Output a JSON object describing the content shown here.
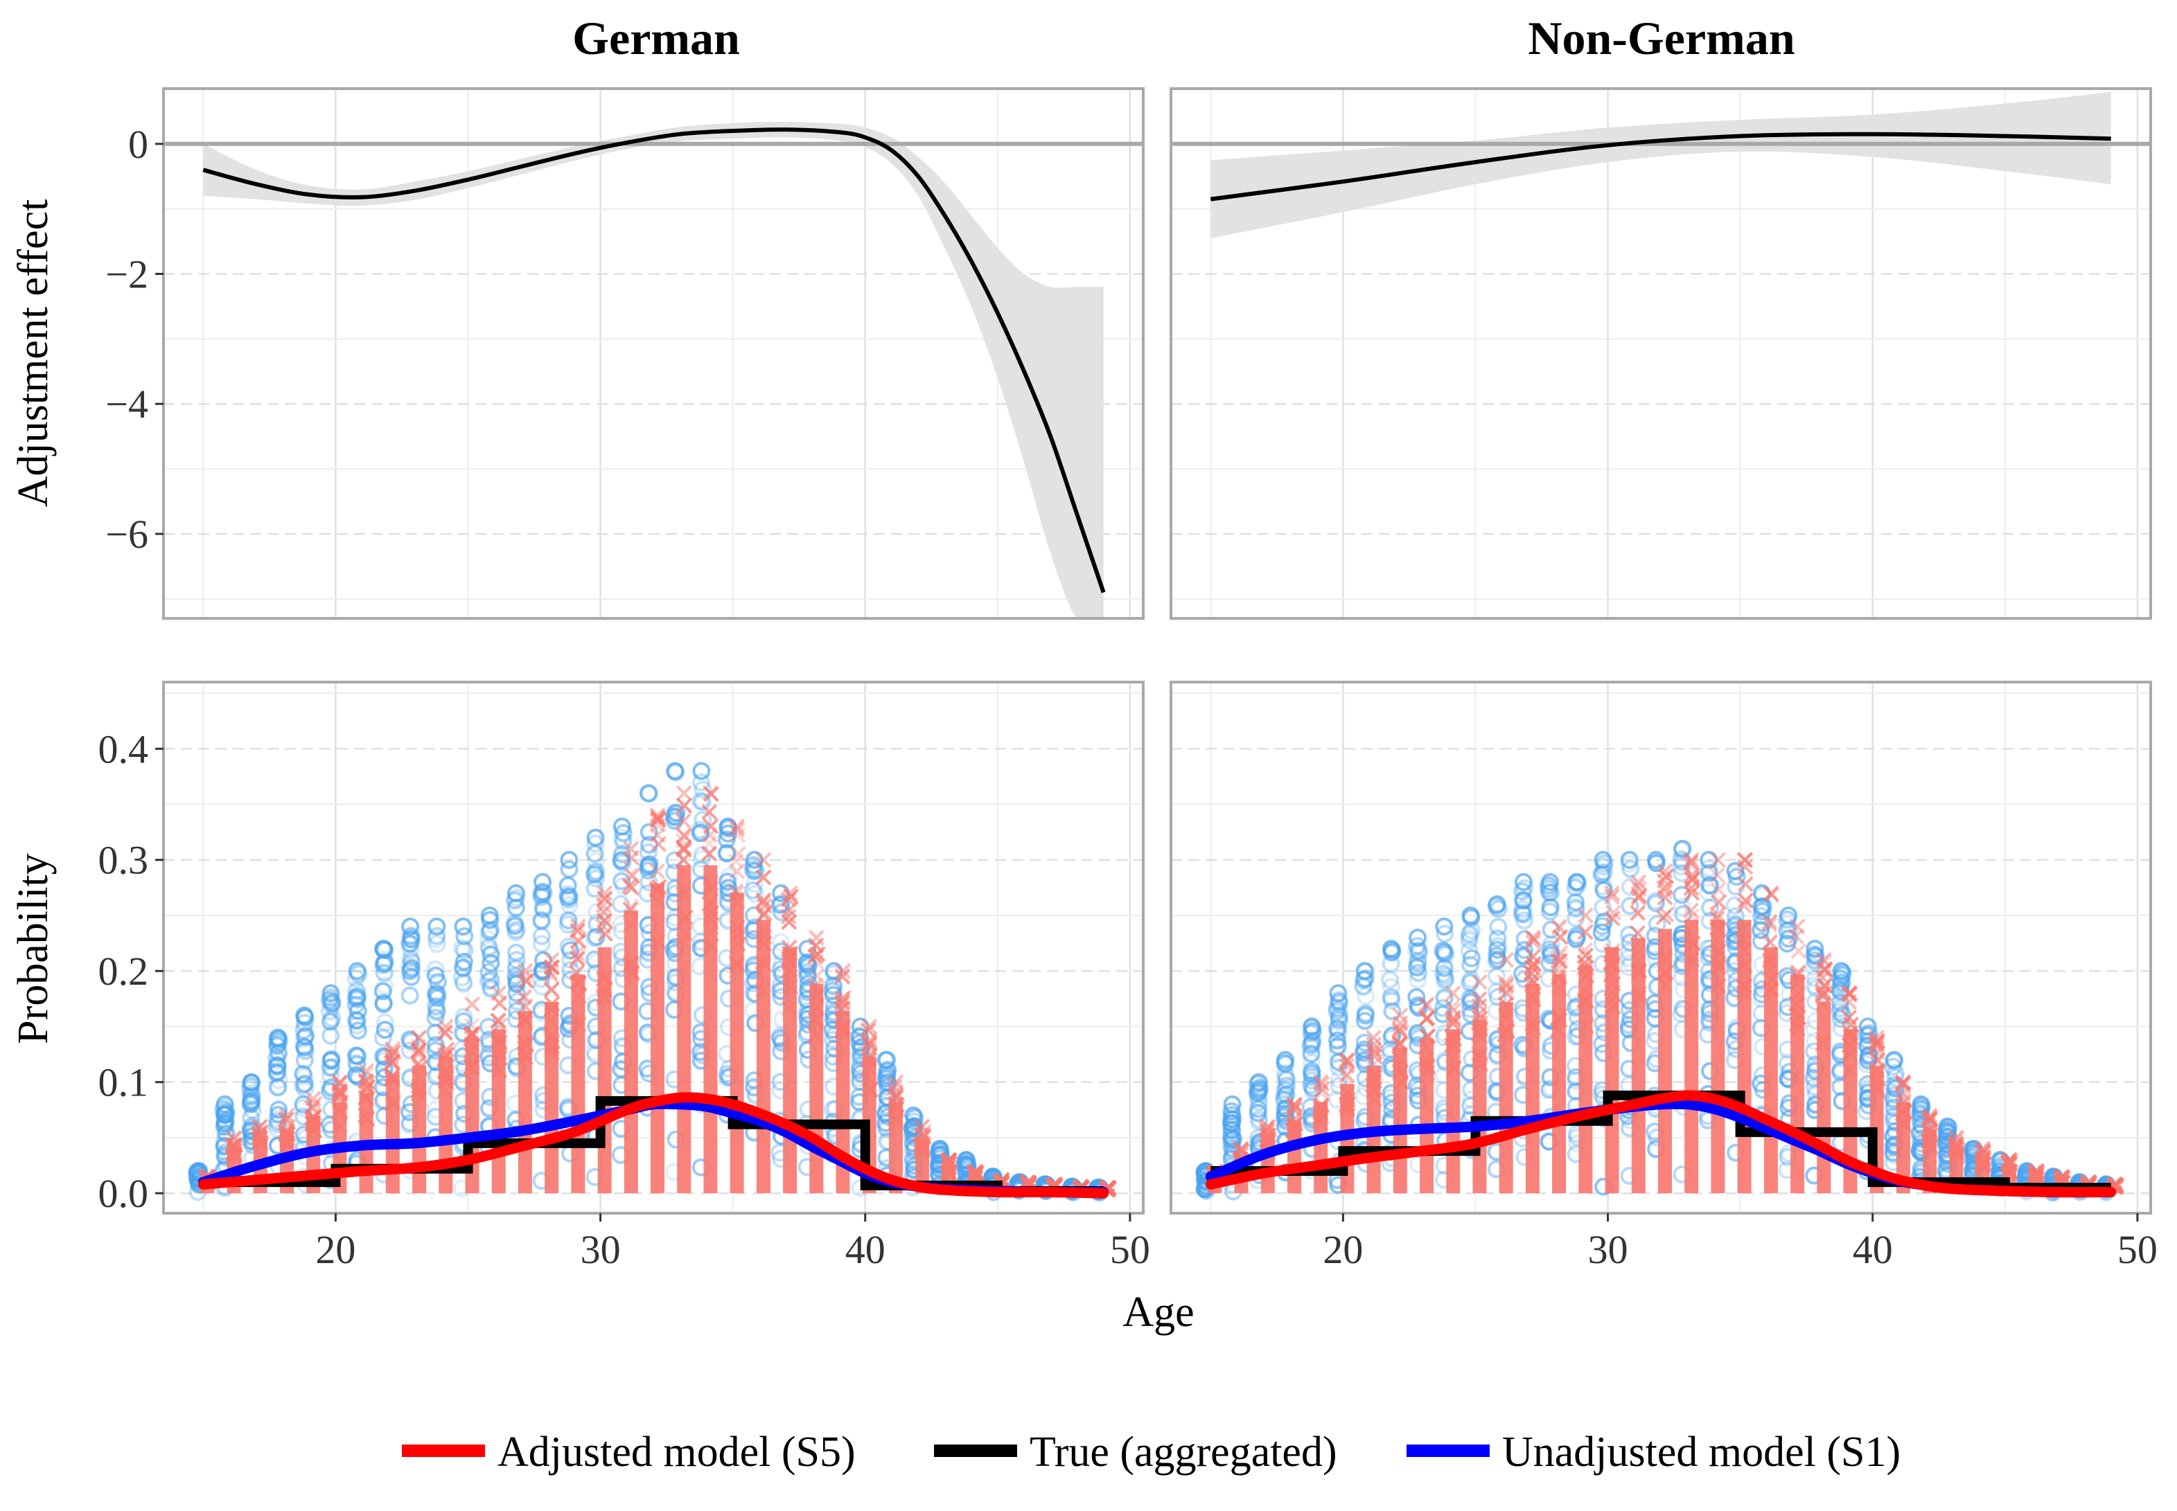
{
  "chart_data": {
    "type": "line",
    "x_label": "Age",
    "x_ticks": [
      20,
      30,
      40,
      50
    ],
    "x_range": [
      13.5,
      50.5
    ],
    "facets": [
      "German",
      "Non-German"
    ],
    "top_row": {
      "ylabel": "Adjustment effect",
      "ylim": [
        -7.3,
        0.85
      ],
      "y_ticks": [
        0,
        -2,
        -4,
        -6
      ],
      "y_tick_labels": [
        "0",
        "−2",
        "−4",
        "−6"
      ],
      "reference_line": 0,
      "series": [
        {
          "name": "German",
          "x": [
            15,
            17,
            19,
            21,
            23,
            25,
            27,
            29,
            31,
            33,
            35,
            37,
            39,
            40,
            41,
            42,
            43,
            44,
            45,
            46,
            47,
            48,
            49
          ],
          "y": [
            -0.4,
            -0.62,
            -0.78,
            -0.82,
            -0.72,
            -0.55,
            -0.35,
            -0.15,
            0.02,
            0.15,
            0.2,
            0.22,
            0.18,
            0.1,
            -0.1,
            -0.5,
            -1.1,
            -1.8,
            -2.6,
            -3.5,
            -4.5,
            -5.7,
            -6.9
          ],
          "lower": [
            -0.8,
            -0.85,
            -0.92,
            -0.95,
            -0.86,
            -0.68,
            -0.47,
            -0.26,
            -0.08,
            0.04,
            0.08,
            0.1,
            0.05,
            -0.05,
            -0.3,
            -0.8,
            -1.6,
            -2.5,
            -3.6,
            -4.9,
            -6.3,
            -7.3,
            -7.3
          ],
          "upper": [
            0.0,
            -0.4,
            -0.64,
            -0.7,
            -0.58,
            -0.42,
            -0.23,
            -0.04,
            0.12,
            0.26,
            0.32,
            0.34,
            0.31,
            0.25,
            0.1,
            -0.2,
            -0.6,
            -1.1,
            -1.6,
            -2.0,
            -2.2,
            -2.2,
            -2.2
          ]
        },
        {
          "name": "Non-German",
          "x": [
            15,
            20,
            25,
            30,
            35,
            40,
            45,
            49
          ],
          "y": [
            -0.85,
            -0.58,
            -0.28,
            -0.02,
            0.12,
            0.15,
            0.12,
            0.08
          ],
          "lower": [
            -1.45,
            -1.05,
            -0.62,
            -0.28,
            -0.12,
            -0.2,
            -0.42,
            -0.62
          ],
          "upper": [
            -0.25,
            -0.1,
            0.05,
            0.25,
            0.37,
            0.45,
            0.62,
            0.8
          ]
        }
      ]
    },
    "bottom_row": {
      "ylabel": "Probability",
      "ylim": [
        -0.018,
        0.46
      ],
      "y_ticks": [
        0.0,
        0.1,
        0.2,
        0.3,
        0.4
      ],
      "y_tick_labels": [
        "0.0",
        "0.1",
        "0.2",
        "0.3",
        "0.4"
      ],
      "panels": [
        {
          "name": "German",
          "true_steps": [
            {
              "x0": 15,
              "x1": 20,
              "y": 0.01
            },
            {
              "x0": 20,
              "x1": 25,
              "y": 0.022
            },
            {
              "x0": 25,
              "x1": 30,
              "y": 0.045
            },
            {
              "x0": 30,
              "x1": 35,
              "y": 0.083
            },
            {
              "x0": 35,
              "x1": 40,
              "y": 0.062
            },
            {
              "x0": 40,
              "x1": 45,
              "y": 0.007
            },
            {
              "x0": 45,
              "x1": 49,
              "y": 0.002
            }
          ],
          "adjusted": {
            "x": [
              15,
              17,
              19,
              21,
              23,
              25,
              27,
              29,
              31,
              32,
              33,
              34,
              35,
              36,
              37,
              38,
              39,
              40,
              41,
              42,
              43,
              45,
              47,
              49
            ],
            "y": [
              0.008,
              0.012,
              0.016,
              0.02,
              0.023,
              0.03,
              0.042,
              0.055,
              0.075,
              0.082,
              0.086,
              0.085,
              0.08,
              0.072,
              0.062,
              0.05,
              0.035,
              0.022,
              0.012,
              0.006,
              0.003,
              0.001,
              0.001,
              0.0
            ]
          },
          "unadjusted": {
            "x": [
              15,
              17,
              19,
              21,
              23,
              25,
              27,
              29,
              31,
              32,
              33,
              34,
              35,
              36,
              37,
              38,
              39,
              40,
              41,
              42,
              43,
              45,
              47,
              49
            ],
            "y": [
              0.01,
              0.025,
              0.037,
              0.043,
              0.045,
              0.05,
              0.056,
              0.065,
              0.075,
              0.08,
              0.08,
              0.078,
              0.072,
              0.065,
              0.055,
              0.042,
              0.03,
              0.018,
              0.01,
              0.006,
              0.004,
              0.002,
              0.001,
              0.001
            ]
          },
          "points": {
            "ages": [
              15,
              16,
              17,
              18,
              19,
              20,
              21,
              22,
              23,
              24,
              25,
              26,
              27,
              28,
              29,
              30,
              31,
              32,
              33,
              34,
              35,
              36,
              37,
              38,
              39,
              40,
              41,
              42,
              43,
              44,
              45,
              46,
              47,
              48,
              49
            ],
            "adjusted_max": [
              0.015,
              0.05,
              0.06,
              0.07,
              0.085,
              0.1,
              0.11,
              0.13,
              0.14,
              0.15,
              0.17,
              0.18,
              0.2,
              0.21,
              0.24,
              0.27,
              0.31,
              0.34,
              0.36,
              0.36,
              0.33,
              0.3,
              0.27,
              0.23,
              0.2,
              0.15,
              0.1,
              0.06,
              0.03,
              0.02,
              0.012,
              0.01,
              0.008,
              0.006,
              0.005
            ],
            "unadjusted_max": [
              0.02,
              0.08,
              0.1,
              0.14,
              0.16,
              0.18,
              0.2,
              0.22,
              0.24,
              0.24,
              0.24,
              0.25,
              0.27,
              0.28,
              0.3,
              0.32,
              0.33,
              0.36,
              0.38,
              0.38,
              0.33,
              0.3,
              0.27,
              0.22,
              0.2,
              0.15,
              0.12,
              0.07,
              0.04,
              0.03,
              0.015,
              0.01,
              0.008,
              0.006,
              0.005
            ]
          }
        },
        {
          "name": "Non-German",
          "true_steps": [
            {
              "x0": 15,
              "x1": 20,
              "y": 0.02
            },
            {
              "x0": 20,
              "x1": 25,
              "y": 0.038
            },
            {
              "x0": 25,
              "x1": 30,
              "y": 0.065
            },
            {
              "x0": 30,
              "x1": 35,
              "y": 0.088
            },
            {
              "x0": 35,
              "x1": 40,
              "y": 0.055
            },
            {
              "x0": 40,
              "x1": 45,
              "y": 0.01
            },
            {
              "x0": 45,
              "x1": 49,
              "y": 0.005
            }
          ],
          "adjusted": {
            "x": [
              15,
              17,
              19,
              21,
              23,
              25,
              27,
              29,
              31,
              32,
              33,
              34,
              35,
              36,
              37,
              38,
              39,
              40,
              41,
              42,
              43,
              45,
              47,
              49
            ],
            "y": [
              0.008,
              0.018,
              0.025,
              0.032,
              0.038,
              0.045,
              0.058,
              0.07,
              0.08,
              0.085,
              0.088,
              0.085,
              0.077,
              0.066,
              0.055,
              0.043,
              0.03,
              0.02,
              0.012,
              0.007,
              0.004,
              0.002,
              0.001,
              0.001
            ]
          },
          "unadjusted": {
            "x": [
              15,
              17,
              19,
              21,
              23,
              25,
              27,
              29,
              31,
              32,
              33,
              34,
              35,
              36,
              37,
              38,
              39,
              40,
              41,
              42,
              43,
              45,
              47,
              49
            ],
            "y": [
              0.015,
              0.035,
              0.048,
              0.055,
              0.058,
              0.06,
              0.065,
              0.072,
              0.078,
              0.08,
              0.08,
              0.076,
              0.068,
              0.058,
              0.048,
              0.038,
              0.027,
              0.018,
              0.011,
              0.007,
              0.004,
              0.002,
              0.001,
              0.001
            ]
          },
          "points": {
            "ages": [
              15,
              16,
              17,
              18,
              19,
              20,
              21,
              22,
              23,
              24,
              25,
              26,
              27,
              28,
              29,
              30,
              31,
              32,
              33,
              34,
              35,
              36,
              37,
              38,
              39,
              40,
              41,
              42,
              43,
              44,
              45,
              46,
              47,
              48,
              49
            ],
            "adjusted_max": [
              0.02,
              0.04,
              0.06,
              0.08,
              0.1,
              0.12,
              0.14,
              0.16,
              0.17,
              0.18,
              0.19,
              0.21,
              0.23,
              0.24,
              0.25,
              0.27,
              0.28,
              0.29,
              0.3,
              0.3,
              0.3,
              0.27,
              0.24,
              0.21,
              0.18,
              0.14,
              0.1,
              0.07,
              0.05,
              0.04,
              0.03,
              0.02,
              0.015,
              0.01,
              0.008
            ],
            "unadjusted_max": [
              0.02,
              0.08,
              0.1,
              0.12,
              0.15,
              0.18,
              0.2,
              0.22,
              0.23,
              0.24,
              0.25,
              0.26,
              0.28,
              0.28,
              0.28,
              0.3,
              0.3,
              0.3,
              0.31,
              0.3,
              0.29,
              0.27,
              0.25,
              0.22,
              0.2,
              0.15,
              0.12,
              0.08,
              0.06,
              0.04,
              0.03,
              0.02,
              0.015,
              0.01,
              0.008
            ]
          }
        }
      ]
    },
    "legend": {
      "placement": "bottom",
      "entries": [
        {
          "label": "Adjusted model (S5)",
          "color": "#ff0000"
        },
        {
          "label": "True (aggregated)",
          "color": "#000000"
        },
        {
          "label": "Unadjusted model (S1)",
          "color": "#0000ff"
        }
      ]
    },
    "colors": {
      "adjusted_points": "#f8766d",
      "unadjusted_points": "#4aa3f0",
      "ribbon": "#e2e2e2",
      "reference": "#a8a8a8",
      "panel_border": "#a9a9a9",
      "grid_major": "#e0e0e0",
      "grid_minor": "#ededed"
    }
  }
}
